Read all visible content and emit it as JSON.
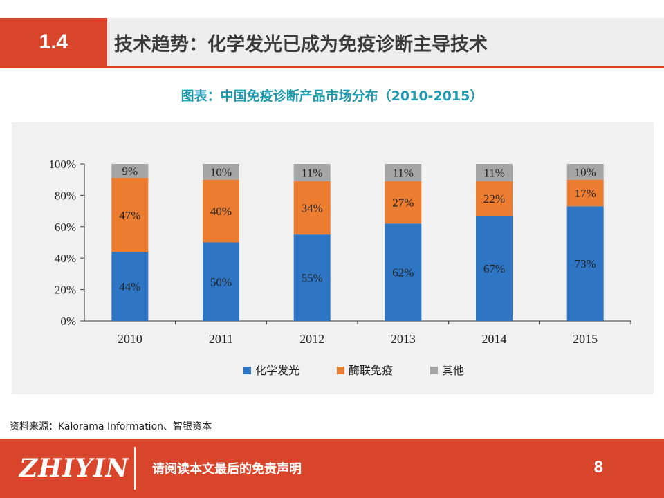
{
  "header": {
    "section_number": "1.4",
    "title": "技术趋势：化学发光已成为免疫诊断主导技术"
  },
  "chart_subtitle": "图表：中国免疫诊断产品市场分布（2010-2015）",
  "source_text": "资料来源：Kalorama Information、智银资本",
  "footer": {
    "logo": "ZHIYIN",
    "disclaimer": "请阅读本文最后的免责声明",
    "page_number": "8"
  },
  "colors": {
    "accent": "#d8452b",
    "subtitle": "#1f9bb0",
    "series": [
      "#2e75c4",
      "#ec7c30",
      "#a5a5a5"
    ]
  },
  "chart_data": {
    "type": "bar",
    "stacked": true,
    "categories": [
      "2010",
      "2011",
      "2012",
      "2013",
      "2014",
      "2015"
    ],
    "series": [
      {
        "name": "化学发光",
        "values": [
          44,
          50,
          55,
          62,
          67,
          73
        ],
        "labels": [
          "44%",
          "50%",
          "55%",
          "62%",
          "67%",
          "73%"
        ],
        "color": "#2e75c4"
      },
      {
        "name": "酶联免疫",
        "values": [
          47,
          40,
          34,
          27,
          22,
          17
        ],
        "labels": [
          "47%",
          "40%",
          "34%",
          "27%",
          "22%",
          "17%"
        ],
        "color": "#ec7c30"
      },
      {
        "name": "其他",
        "values": [
          9,
          10,
          11,
          11,
          11,
          10
        ],
        "labels": [
          "9%",
          "10%",
          "11%",
          "11%",
          "11%",
          "10%"
        ],
        "color": "#a5a5a5"
      }
    ],
    "yticks": [
      "0%",
      "20%",
      "40%",
      "60%",
      "80%",
      "100%"
    ],
    "ylim": [
      0,
      100
    ],
    "legend_position": "bottom",
    "grid": false
  }
}
